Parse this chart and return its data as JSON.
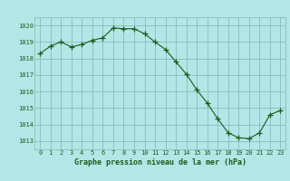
{
  "x": [
    0,
    1,
    2,
    3,
    4,
    5,
    6,
    7,
    8,
    9,
    10,
    11,
    12,
    13,
    14,
    15,
    16,
    17,
    18,
    19,
    20,
    21,
    22,
    23
  ],
  "y": [
    1018.3,
    1018.75,
    1019.0,
    1018.7,
    1018.85,
    1019.1,
    1019.25,
    1019.85,
    1019.8,
    1019.8,
    1019.5,
    1019.0,
    1018.55,
    1017.8,
    1017.05,
    1016.1,
    1015.3,
    1014.35,
    1013.5,
    1013.2,
    1013.15,
    1013.5,
    1014.6,
    1014.85
  ],
  "line_color": "#1a5c1a",
  "marker": "+",
  "marker_size": 4,
  "marker_color": "#1a5c1a",
  "bg_color": "#b3e6e6",
  "grid_color": "#7ab8b8",
  "tick_color": "#1a5c1a",
  "label_color": "#1a5c1a",
  "xlabel": "Graphe pression niveau de la mer (hPa)",
  "ylim": [
    1012.5,
    1020.5
  ],
  "xlim": [
    -0.5,
    23.5
  ],
  "yticks": [
    1013,
    1014,
    1015,
    1016,
    1017,
    1018,
    1019,
    1020
  ],
  "xticks": [
    0,
    1,
    2,
    3,
    4,
    5,
    6,
    7,
    8,
    9,
    10,
    11,
    12,
    13,
    14,
    15,
    16,
    17,
    18,
    19,
    20,
    21,
    22,
    23
  ]
}
